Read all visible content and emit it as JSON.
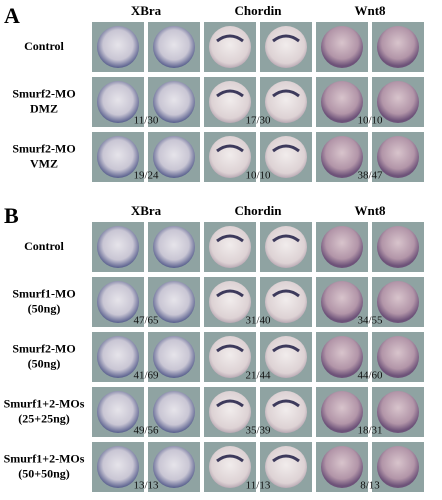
{
  "panels": [
    {
      "label": "A",
      "columns": [
        "XBra",
        "Chordin",
        "Wnt8"
      ],
      "rows": [
        {
          "label": [
            "Control"
          ]
        },
        {
          "label": [
            "Smurf2-MO",
            "DMZ"
          ],
          "counts": [
            "11/30",
            "17/30",
            "10/10"
          ]
        },
        {
          "label": [
            "Smurf2-MO",
            "VMZ"
          ],
          "counts": [
            "19/24",
            "10/10",
            "38/47"
          ]
        }
      ]
    },
    {
      "label": "B",
      "columns": [
        "XBra",
        "Chordin",
        "Wnt8"
      ],
      "rows": [
        {
          "label": [
            "Control"
          ]
        },
        {
          "label": [
            "Smurf1-MO",
            "(50ng)"
          ],
          "counts": [
            "47/65",
            "31/40",
            "34/55"
          ]
        },
        {
          "label": [
            "Smurf2-MO",
            "(50ng)"
          ],
          "counts": [
            "41/69",
            "21/44",
            "44/60"
          ]
        },
        {
          "label": [
            "Smurf1+2-MOs",
            "(25+25ng)"
          ],
          "counts": [
            "49/56",
            "35/39",
            "18/31"
          ]
        },
        {
          "label": [
            "Smurf1+2-MOs",
            "(50+50ng)"
          ],
          "counts": [
            "13/13",
            "11/13",
            "8/13"
          ]
        }
      ]
    }
  ]
}
